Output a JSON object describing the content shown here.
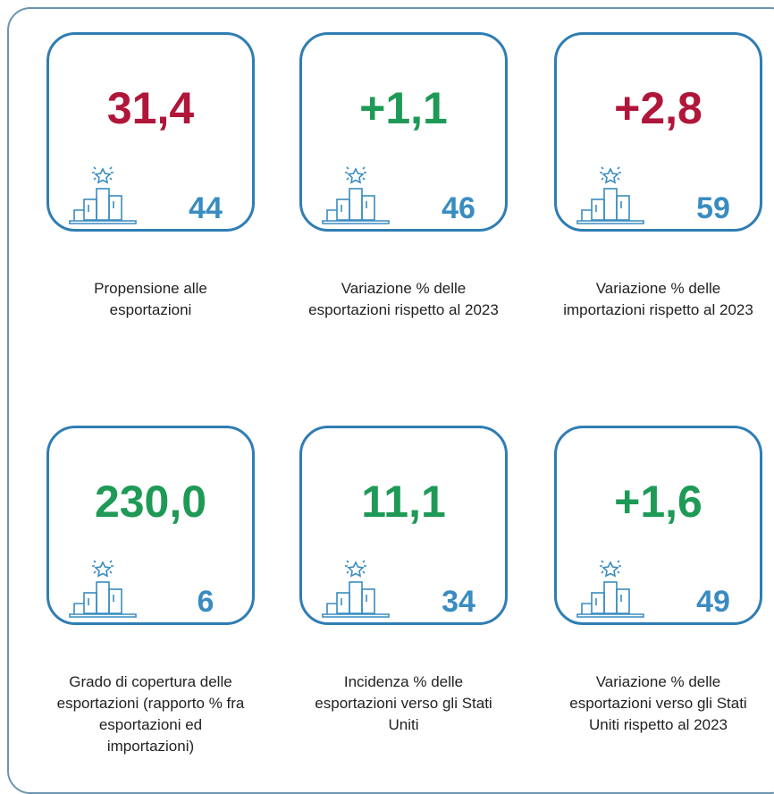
{
  "cards": [
    {
      "value": "31,4",
      "value_color": "#b0163a",
      "rank": "44",
      "label": "Propensione alle esportazioni"
    },
    {
      "value": "+1,1",
      "value_color": "#1e9a56",
      "rank": "46",
      "label": "Variazione % delle esportazioni rispetto al 2023"
    },
    {
      "value": "+2,8",
      "value_color": "#b0163a",
      "rank": "59",
      "label": "Variazione % delle importazioni rispetto al 2023"
    },
    {
      "value": "230,0",
      "value_color": "#1e9a56",
      "rank": "6",
      "label": "Grado di copertura delle esportazioni (rapporto % fra esportazioni ed importazioni)"
    },
    {
      "value": "11,1",
      "value_color": "#1e9a56",
      "rank": "34",
      "label": "Incidenza % delle esportazioni verso gli Stati Uniti"
    },
    {
      "value": "+1,6",
      "value_color": "#1e9a56",
      "rank": "49",
      "label": "Variazione % delle esportazioni verso gli Stati Uniti rispetto al 2023"
    }
  ]
}
